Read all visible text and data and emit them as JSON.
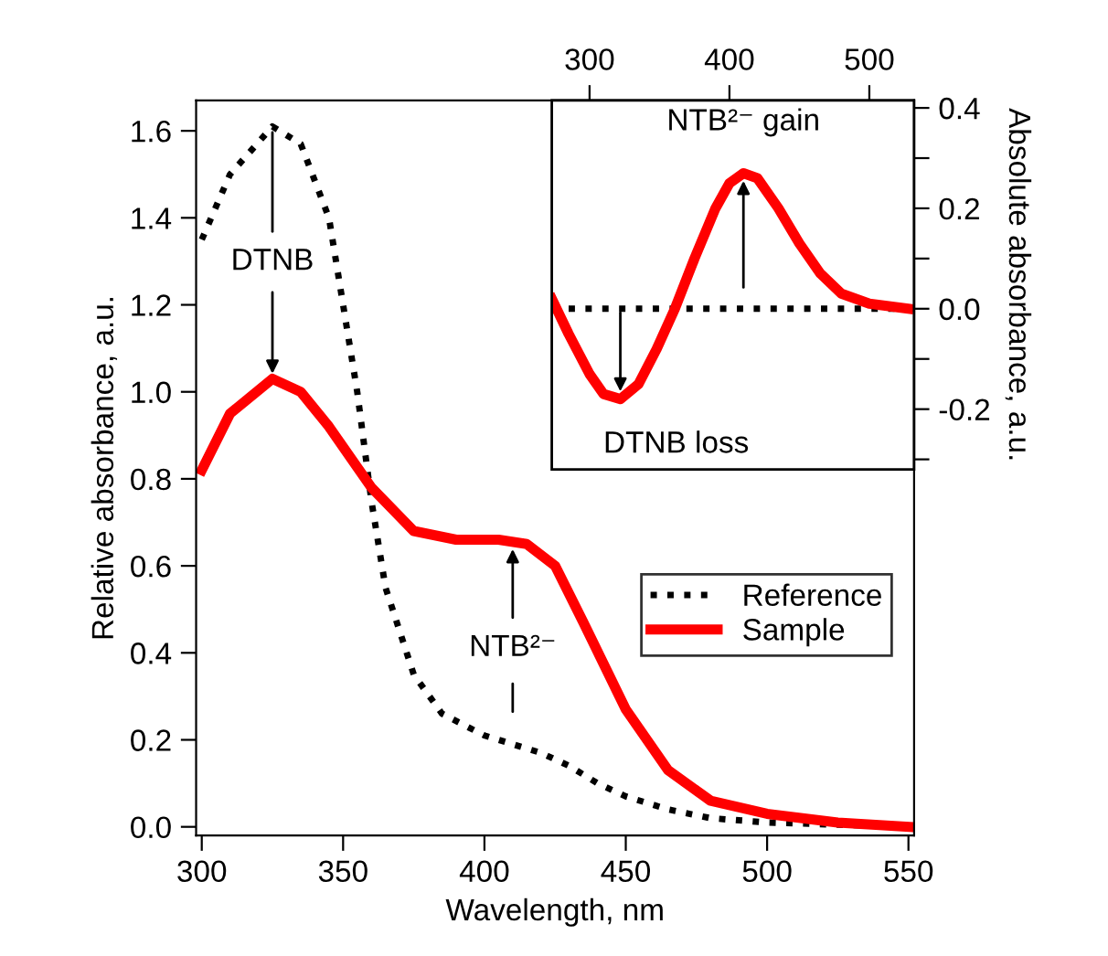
{
  "chart_data": [
    {
      "type": "line",
      "xlabel": "Wavelength, nm",
      "ylabel": "Relative absorbance, a.u.",
      "xlim": [
        298,
        552
      ],
      "xticks": [
        300,
        350,
        400,
        450,
        500,
        550
      ],
      "ylim": [
        -0.02,
        1.67
      ],
      "yticks": [
        {
          "value": 0,
          "label": "0.0"
        },
        0.2,
        0.4,
        0.6,
        0.8,
        {
          "value": 1,
          "label": "1.0"
        },
        1.2,
        1.4,
        1.6
      ],
      "legend": "center right",
      "grid": false,
      "marker": "none",
      "series": [
        {
          "name": "Reference",
          "color": "#000000",
          "line_style": "dotted",
          "x": [
            300,
            310,
            325,
            335,
            345,
            355,
            360,
            365,
            375,
            385,
            400,
            410,
            420,
            430,
            440,
            450,
            465,
            480,
            500,
            525,
            550
          ],
          "values": [
            1.35,
            1.5,
            1.61,
            1.57,
            1.4,
            1.0,
            0.75,
            0.55,
            0.35,
            0.26,
            0.21,
            0.19,
            0.17,
            0.14,
            0.1,
            0.07,
            0.04,
            0.02,
            0.01,
            0.005,
            0.0
          ]
        },
        {
          "name": "Sample",
          "color": "#ff0000",
          "line_style": "solid",
          "x": [
            300,
            310,
            325,
            335,
            345,
            360,
            375,
            390,
            405,
            415,
            425,
            435,
            450,
            465,
            480,
            500,
            525,
            550
          ],
          "values": [
            0.82,
            0.95,
            1.03,
            1.0,
            0.92,
            0.78,
            0.68,
            0.66,
            0.66,
            0.65,
            0.6,
            0.47,
            0.27,
            0.13,
            0.06,
            0.03,
            0.01,
            0.0
          ]
        }
      ],
      "annotations": [
        {
          "text": "DTNB",
          "x": 325,
          "y": 1.03
        },
        {
          "text": "NTB²⁻",
          "x": 410,
          "y": 0.65
        }
      ]
    },
    {
      "type": "line",
      "ylabel": "Absolute absorbance, a.u.",
      "xlim": [
        273,
        532
      ],
      "xticks": [
        300,
        400,
        500
      ],
      "ylim": [
        -0.32,
        0.415
      ],
      "yticks": [
        {
          "value": -0.3,
          "label": null
        },
        -0.2,
        {
          "value": -0.1,
          "label": null
        },
        {
          "value": 0,
          "label": "0.0"
        },
        {
          "value": 0.1,
          "label": null
        },
        0.2,
        {
          "value": 0.3,
          "label": null
        },
        0.4
      ],
      "legend": false,
      "grid": false,
      "marker": "none",
      "series": [
        {
          "color": "#000000",
          "line_style": "dotted",
          "x": [
            273,
            528
          ],
          "values": [
            0.0,
            0.0
          ]
        },
        {
          "color": "#ff0000",
          "line_style": "solid",
          "x": [
            273,
            285,
            300,
            310,
            322,
            335,
            348,
            361,
            375,
            390,
            400,
            410,
            420,
            435,
            450,
            465,
            480,
            500,
            528
          ],
          "values": [
            0.02,
            -0.05,
            -0.13,
            -0.17,
            -0.18,
            -0.15,
            -0.08,
            0.0,
            0.1,
            0.2,
            0.25,
            0.27,
            0.26,
            0.2,
            0.13,
            0.07,
            0.03,
            0.01,
            0.0
          ]
        }
      ],
      "annotations": [
        {
          "text": "DTNB loss",
          "x": 322,
          "y": -0.18
        },
        {
          "text": "NTB²⁻ gain",
          "x": 410,
          "y": 0.27
        }
      ]
    }
  ]
}
